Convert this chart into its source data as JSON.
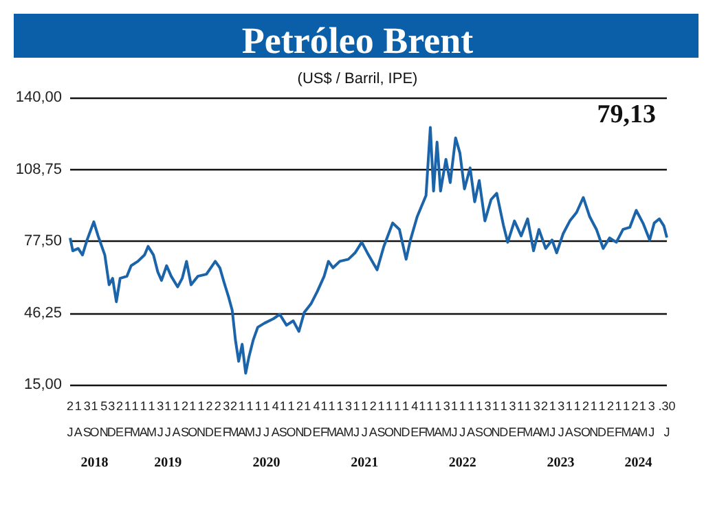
{
  "chart_data": {
    "type": "line",
    "title": "Petróleo Brent",
    "subtitle": "(US$ / Barril, IPE)",
    "annotations": [
      "79,13"
    ],
    "x": [
      "2018-07-02",
      "2018-07-12",
      "2018-08-01",
      "2018-08-17",
      "2018-09-03",
      "2018-09-28",
      "2018-10-14",
      "2018-11-08",
      "2018-11-24",
      "2018-12-07",
      "2018-12-21",
      "2019-01-04",
      "2019-01-29",
      "2019-02-14",
      "2019-03-11",
      "2019-04-05",
      "2019-04-18",
      "2019-05-08",
      "2019-05-24",
      "2019-06-07",
      "2019-06-26",
      "2019-07-13",
      "2019-08-06",
      "2019-08-23",
      "2019-09-08",
      "2019-09-25",
      "2019-10-20",
      "2019-11-21",
      "2019-12-24",
      "2020-01-10",
      "2020-01-26",
      "2020-02-12",
      "2020-02-25",
      "2020-03-08",
      "2020-03-20",
      "2020-04-02",
      "2020-04-15",
      "2020-04-27",
      "2020-05-13",
      "2020-05-30",
      "2020-06-24",
      "2020-07-27",
      "2020-08-20",
      "2020-09-14",
      "2020-10-09",
      "2020-10-30",
      "2020-11-19",
      "2020-12-14",
      "2021-01-07",
      "2021-02-01",
      "2021-02-17",
      "2021-03-06",
      "2021-03-31",
      "2021-05-02",
      "2021-05-27",
      "2021-06-21",
      "2021-07-16",
      "2021-08-17",
      "2021-09-11",
      "2021-10-14",
      "2021-11-08",
      "2021-12-03",
      "2021-12-19",
      "2022-01-13",
      "2022-02-15",
      "2022-03-03",
      "2022-03-15",
      "2022-03-28",
      "2022-04-10",
      "2022-04-30",
      "2022-05-16",
      "2022-06-05",
      "2022-06-21",
      "2022-07-08",
      "2022-07-29",
      "2022-08-15",
      "2022-09-01",
      "2022-09-22",
      "2022-10-15",
      "2022-11-05",
      "2022-11-30",
      "2022-12-16",
      "2023-01-10",
      "2023-02-04",
      "2023-02-28",
      "2023-03-22",
      "2023-04-11",
      "2023-05-06",
      "2023-05-30",
      "2023-06-16",
      "2023-07-10",
      "2023-08-04",
      "2023-08-29",
      "2023-09-23",
      "2023-10-17",
      "2023-11-11",
      "2023-12-06",
      "2023-12-30",
      "2024-01-24",
      "2024-02-18",
      "2024-03-14",
      "2024-04-07",
      "2024-05-02",
      "2024-05-27",
      "2024-06-13",
      "2024-07-02",
      "2024-07-19",
      "2024-07-30"
    ],
    "series": [
      {
        "color": "#1b64a9",
        "values": [
          78.9,
          73.3,
          74.3,
          71.5,
          78,
          85.9,
          79.8,
          71.5,
          58.5,
          61.3,
          51.1,
          61.3,
          62.2,
          66.8,
          68.7,
          71.5,
          75.2,
          71.5,
          64.1,
          60.4,
          66.8,
          62.2,
          57.6,
          61.3,
          68.7,
          58.5,
          62.2,
          63.1,
          68.7,
          65.9,
          59.4,
          53,
          47.4,
          34.4,
          25.2,
          32.6,
          20,
          27,
          34.4,
          40,
          41.8,
          43.7,
          45.6,
          40.9,
          42.8,
          38.2,
          46.5,
          50.2,
          55.7,
          62.2,
          68.7,
          65.9,
          68.7,
          69.6,
          72.4,
          77,
          71.5,
          65,
          75.2,
          85.4,
          82.6,
          69.6,
          78,
          88.1,
          97.4,
          127,
          99.3,
          120.6,
          99.3,
          113.1,
          103,
          122.4,
          115.9,
          100.2,
          109.4,
          94.6,
          103.9,
          86.3,
          95.6,
          98.3,
          84.4,
          77,
          86.3,
          79.8,
          87.2,
          73.3,
          82.6,
          74.3,
          78,
          72.4,
          80.7,
          86.3,
          90,
          96.5,
          88.1,
          82.6,
          74.3,
          78.9,
          77,
          82.6,
          83.5,
          90.9,
          85.4,
          78,
          85.4,
          87.2,
          84.1,
          79.1
        ]
      }
    ],
    "marker": "none",
    "grid": "y",
    "xlim": [
      "2018-07-02",
      "2024-07-30"
    ],
    "xticks": [
      {
        "value": "2018-07-02",
        "label": "2\nJ"
      },
      {
        "value": "2018-08-01",
        "label": "1\nA"
      },
      {
        "value": "2018-09-03",
        "label": "3\nS"
      },
      {
        "value": "2018-10-01",
        "label": "1\nO"
      },
      {
        "value": "2018-11-05",
        "label": "5\nN"
      },
      {
        "value": "2018-12-03",
        "label": "3\nD"
      },
      {
        "value": "2019-01-02",
        "label": "2\nE"
      },
      {
        "value": "2019-02-01",
        "label": "1\nF"
      },
      {
        "value": "2019-03-01",
        "label": "1\nM"
      },
      {
        "value": "2019-04-01",
        "label": "1\nA"
      },
      {
        "value": "2019-05-01",
        "label": "1\nM"
      },
      {
        "value": "2019-06-03",
        "label": "3\nJ"
      },
      {
        "value": "2019-07-01",
        "label": "1\nJ"
      },
      {
        "value": "2019-08-01",
        "label": "1\nA"
      },
      {
        "value": "2019-09-02",
        "label": "2\nS"
      },
      {
        "value": "2019-10-01",
        "label": "1\nO"
      },
      {
        "value": "2019-11-01",
        "label": "1\nN"
      },
      {
        "value": "2019-12-02",
        "label": "2\nD"
      },
      {
        "value": "2020-01-02",
        "label": "2\nE"
      },
      {
        "value": "2020-02-03",
        "label": "3\nF"
      },
      {
        "value": "2020-03-02",
        "label": "2\nM"
      },
      {
        "value": "2020-04-01",
        "label": "1\nA"
      },
      {
        "value": "2020-05-01",
        "label": "1\nM"
      },
      {
        "value": "2020-06-01",
        "label": "1\nJ"
      },
      {
        "value": "2020-07-01",
        "label": "1\nJ"
      },
      {
        "value": "2020-08-04",
        "label": "4\nA"
      },
      {
        "value": "2020-09-01",
        "label": "1\nS"
      },
      {
        "value": "2020-10-01",
        "label": "1\nO"
      },
      {
        "value": "2020-11-02",
        "label": "2\nN"
      },
      {
        "value": "2020-12-01",
        "label": "1\nD"
      },
      {
        "value": "2021-01-04",
        "label": "4\nE"
      },
      {
        "value": "2021-02-01",
        "label": "1\nF"
      },
      {
        "value": "2021-03-01",
        "label": "1\nM"
      },
      {
        "value": "2021-04-01",
        "label": "1\nA"
      },
      {
        "value": "2021-05-03",
        "label": "3\nM"
      },
      {
        "value": "2021-06-01",
        "label": "1\nJ"
      },
      {
        "value": "2021-07-01",
        "label": "1\nJ"
      },
      {
        "value": "2021-08-02",
        "label": "2\nA"
      },
      {
        "value": "2021-09-01",
        "label": "1\nS"
      },
      {
        "value": "2021-10-01",
        "label": "1\nO"
      },
      {
        "value": "2021-11-01",
        "label": "1\nN"
      },
      {
        "value": "2021-12-01",
        "label": "1\nD"
      },
      {
        "value": "2022-01-04",
        "label": "4\nE"
      },
      {
        "value": "2022-02-01",
        "label": "1\nF"
      },
      {
        "value": "2022-03-01",
        "label": "1\nM"
      },
      {
        "value": "2022-04-01",
        "label": "1\nA"
      },
      {
        "value": "2022-05-03",
        "label": "3\nM"
      },
      {
        "value": "2022-06-01",
        "label": "1\nJ"
      },
      {
        "value": "2022-07-01",
        "label": "1\nJ"
      },
      {
        "value": "2022-08-01",
        "label": "1\nA"
      },
      {
        "value": "2022-09-01",
        "label": "1\nS"
      },
      {
        "value": "2022-10-03",
        "label": "3\nO"
      },
      {
        "value": "2022-11-01",
        "label": "1\nN"
      },
      {
        "value": "2022-12-01",
        "label": "1\nD"
      },
      {
        "value": "2023-01-03",
        "label": "3\nE"
      },
      {
        "value": "2023-02-01",
        "label": "1\nF"
      },
      {
        "value": "2023-03-01",
        "label": "1\nM"
      },
      {
        "value": "2023-04-03",
        "label": "3\nA"
      },
      {
        "value": "2023-05-02",
        "label": "2\nM"
      },
      {
        "value": "2023-06-01",
        "label": "1\nJ"
      },
      {
        "value": "2023-07-03",
        "label": "3\nJ"
      },
      {
        "value": "2023-08-01",
        "label": "1\nA"
      },
      {
        "value": "2023-09-01",
        "label": "1\nS"
      },
      {
        "value": "2023-10-02",
        "label": "2\nO"
      },
      {
        "value": "2023-11-01",
        "label": "1\nN"
      },
      {
        "value": "2023-12-01",
        "label": "1\nD"
      },
      {
        "value": "2024-01-02",
        "label": "2\nE"
      },
      {
        "value": "2024-02-01",
        "label": "1\nF"
      },
      {
        "value": "2024-03-01",
        "label": "1\nM"
      },
      {
        "value": "2024-04-02",
        "label": "2\nA"
      },
      {
        "value": "2024-05-01",
        "label": "1\nM"
      },
      {
        "value": "2024-06-03",
        "label": "3\nJ"
      },
      {
        "value": "2024-07-30",
        "label": ".30\nJ"
      }
    ],
    "x2lim": [
      "2018-07-02",
      "2024-07-30"
    ],
    "x2ticks": [
      {
        "value": "2018-10-01",
        "label": "2018"
      },
      {
        "value": "2019-07-01",
        "label": "2019"
      },
      {
        "value": "2020-07-01",
        "label": "2020"
      },
      {
        "value": "2021-07-01",
        "label": "2021"
      },
      {
        "value": "2022-07-01",
        "label": "2022"
      },
      {
        "value": "2023-07-01",
        "label": "2023"
      },
      {
        "value": "2024-04-15",
        "label": "2024"
      }
    ],
    "ylim": [
      15,
      140
    ],
    "yticks": [
      {
        "value": 15,
        "label": "15,00"
      },
      {
        "value": 46.25,
        "label": "46,25"
      },
      {
        "value": 77.5,
        "label": "77,50"
      },
      {
        "value": 108.75,
        "label": "108,75"
      },
      {
        "value": 140,
        "label": "140,00"
      }
    ]
  }
}
